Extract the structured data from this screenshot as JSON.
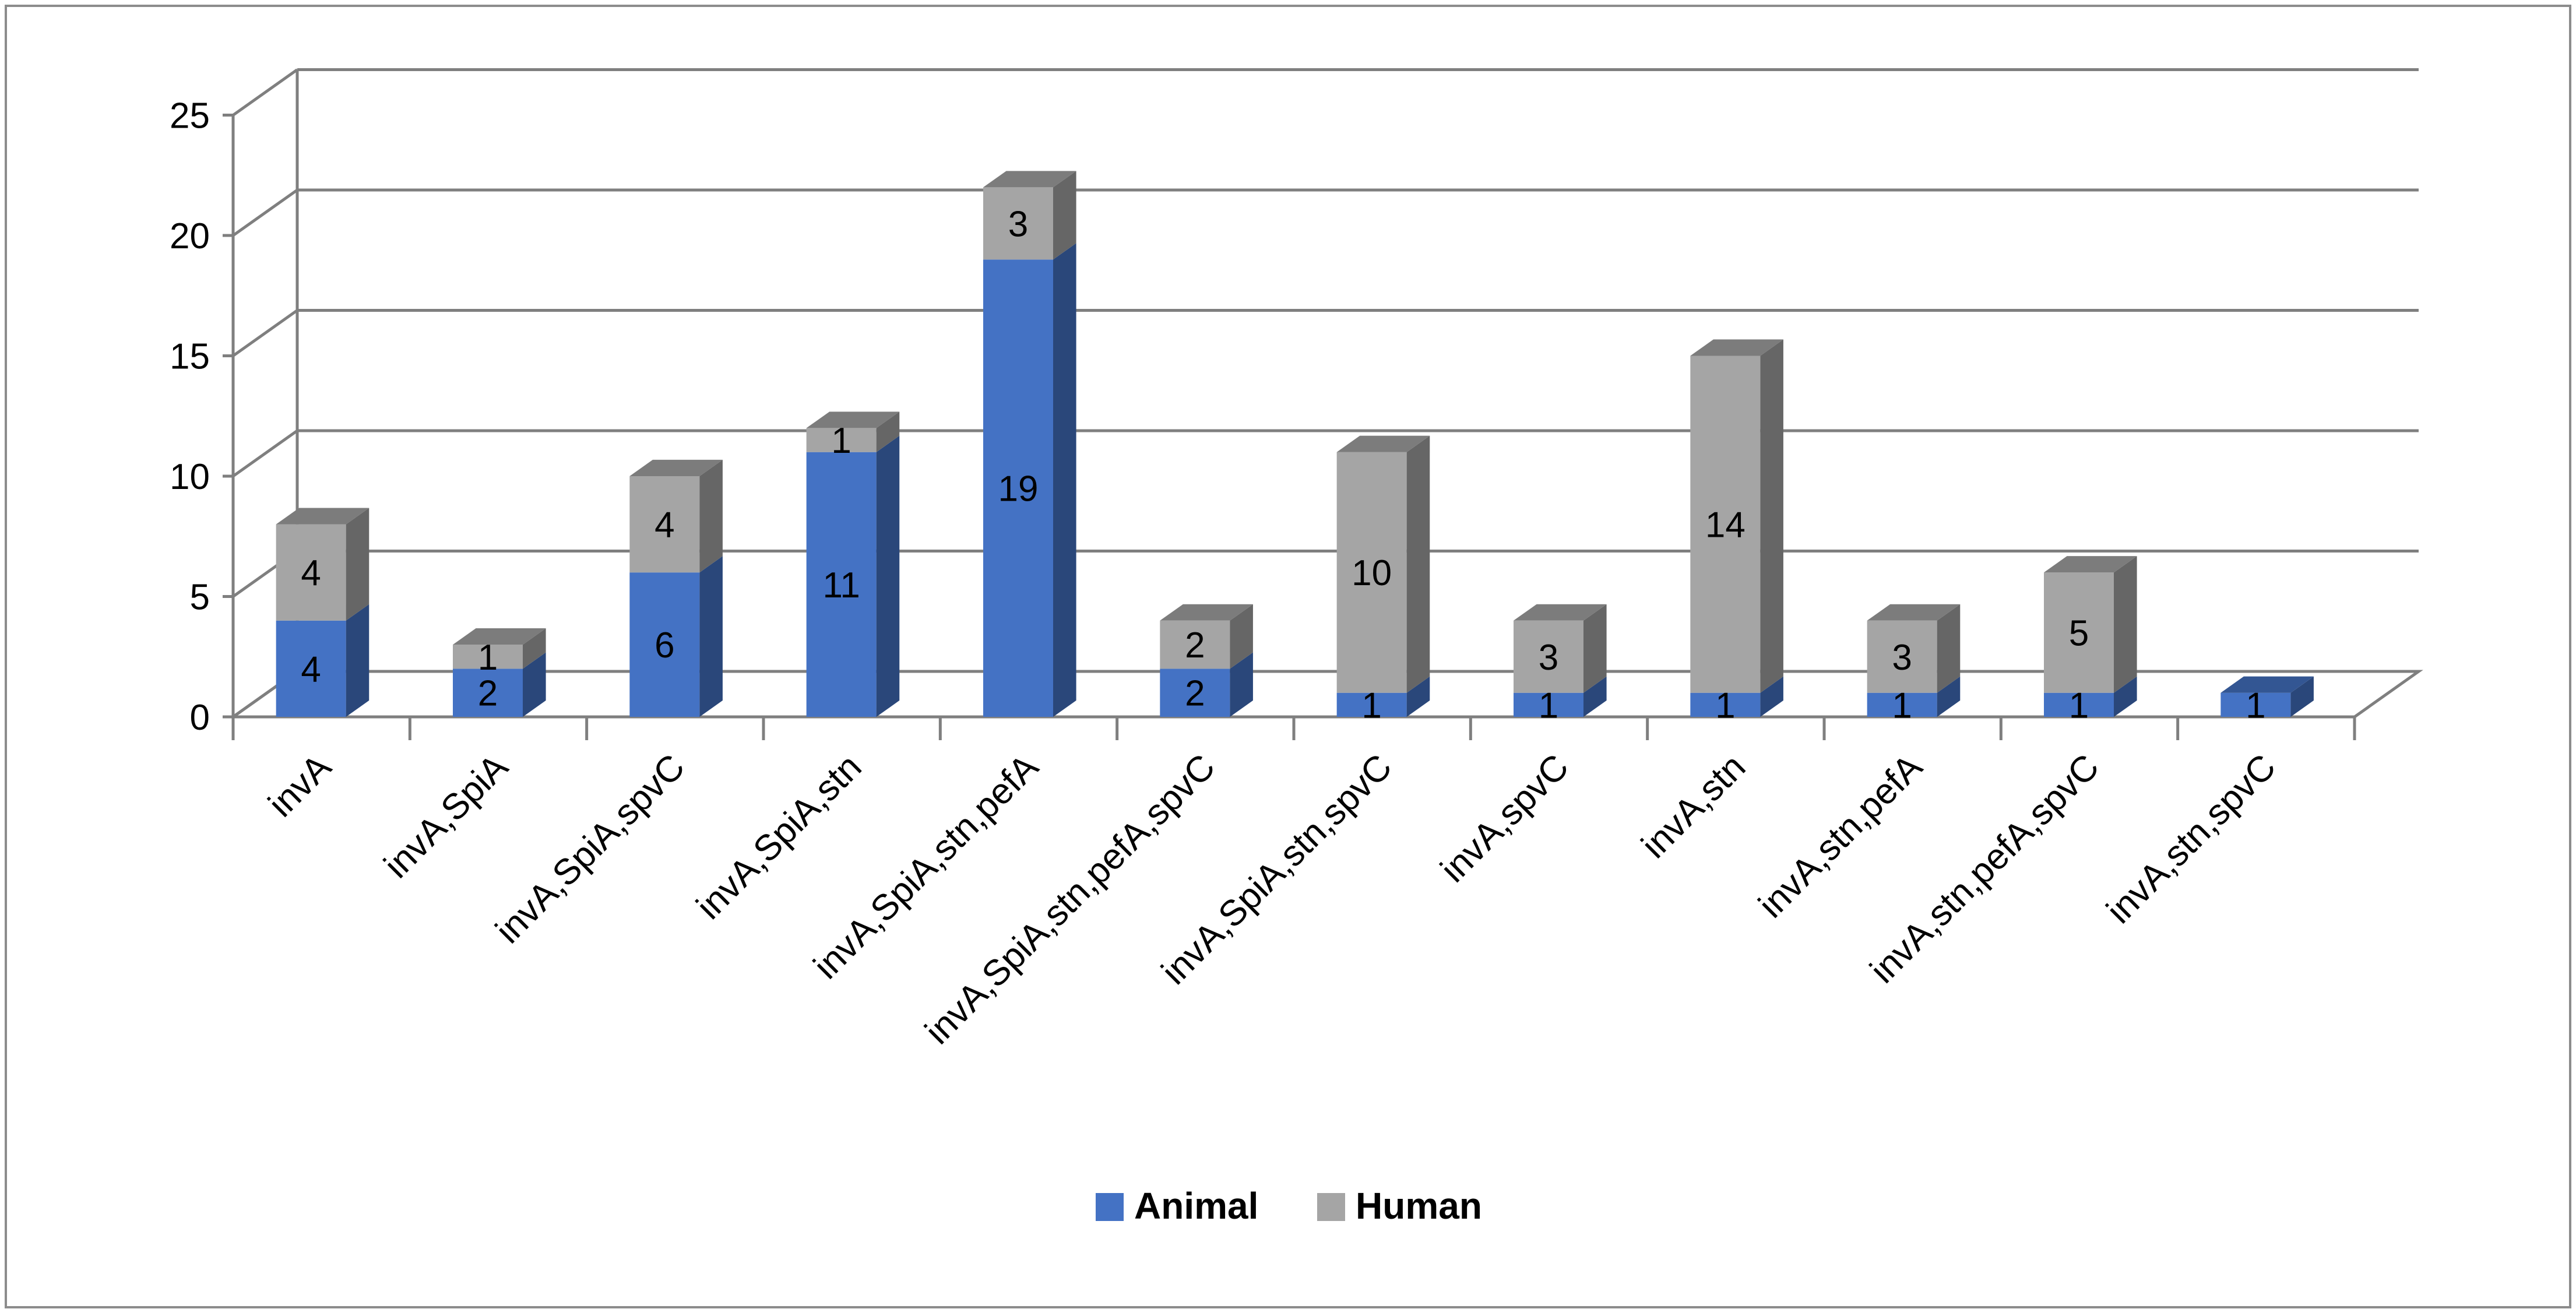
{
  "chart_data": {
    "type": "bar",
    "stacked": true,
    "title": "",
    "xlabel": "",
    "ylabel": "",
    "ylim": [
      0,
      25
    ],
    "yticks": [
      0,
      5,
      10,
      15,
      20,
      25
    ],
    "grid": true,
    "legend_position": "bottom",
    "categories": [
      "invA",
      "invA,SpiA",
      "invA,SpiA,spvC",
      "invA,SpiA,stn",
      "invA,SpiA,stn,pefA",
      "invA,SpiA,stn,pefA,spvC",
      "invA,SpiA,stn,spvC",
      "invA,spvC",
      "invA,stn",
      "invA,stn,pefA",
      "invA,stn,pefA,spvC",
      "invA,stn,spvC"
    ],
    "series": [
      {
        "name": "Animal",
        "color": "#4472C4",
        "values": [
          4,
          2,
          6,
          11,
          19,
          2,
          1,
          1,
          1,
          1,
          1,
          1
        ]
      },
      {
        "name": "Human",
        "color": "#A5A5A5",
        "values": [
          4,
          1,
          4,
          1,
          3,
          2,
          10,
          3,
          14,
          3,
          5,
          0
        ]
      }
    ]
  }
}
